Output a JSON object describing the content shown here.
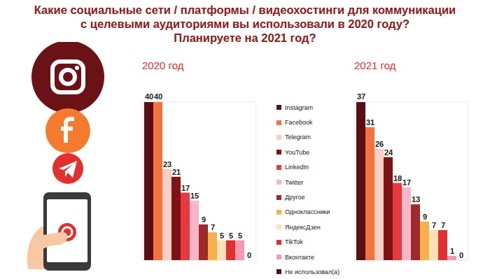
{
  "title": "Какие социальные сети / платформы / видеохостинги для коммуникации\nс целевыми аудиториями вы использовали в 2020 году?\nПланируете на 2021 год?",
  "chart_data": [
    {
      "type": "bar",
      "title": "2020 год",
      "categories": [
        "Instagram",
        "Facebook",
        "Telegram",
        "YouTube",
        "LinkedIn",
        "Twitter",
        "Другое",
        "Одноклассники",
        "ЯндексДзен",
        "TikTok",
        "Вконтакте",
        "Не использовал(а)"
      ],
      "values": [
        40,
        40,
        23,
        21,
        17,
        15,
        9,
        7,
        5,
        5,
        5,
        0
      ],
      "colors": [
        "#5b0e14",
        "#f47140",
        "#fbcfc3",
        "#7e1315",
        "#e8393e",
        "#f6b8c8",
        "#9e2a2c",
        "#f6b24a",
        "#fbe0b8",
        "#e0302f",
        "#f39bb4",
        "#5b0e14"
      ],
      "ylim": [
        0,
        40
      ],
      "data_labels": true,
      "tick_labels": false,
      "legend": "right"
    },
    {
      "type": "bar",
      "title": "2021 год",
      "categories": [
        "Instagram",
        "Facebook",
        "Telegram",
        "YouTube",
        "LinkedIn",
        "Twitter",
        "Другое",
        "Одноклассники",
        "ЯндексДзен",
        "TikTok",
        "Вконтакте",
        "Не использовал(а)"
      ],
      "values": [
        37,
        31,
        26,
        24,
        18,
        17,
        13,
        9,
        7,
        7,
        1,
        0
      ],
      "colors": [
        "#5b0e14",
        "#f47140",
        "#fbcfc3",
        "#7e1315",
        "#e8393e",
        "#f6b8c8",
        "#9e2a2c",
        "#f6b24a",
        "#fbe0b8",
        "#e0302f",
        "#f39bb4",
        "#5b0e14"
      ],
      "ylim": [
        0,
        37
      ],
      "data_labels": true,
      "tick_labels": false
    }
  ]
}
